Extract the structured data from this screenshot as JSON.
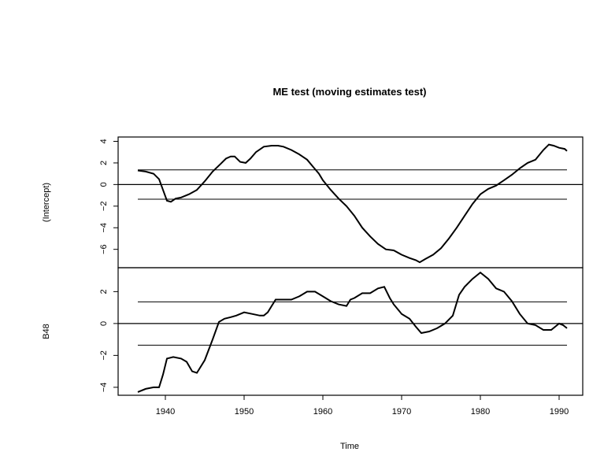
{
  "chart_data": {
    "type": "line",
    "title": "ME test (moving estimates test)",
    "xlabel": "Time",
    "xlim": [
      1934,
      1993
    ],
    "x_ticks": [
      1940,
      1950,
      1960,
      1970,
      1980,
      1990
    ],
    "panels": [
      {
        "ylabel": "(Intercept)",
        "ylim": [
          -7.7,
          4.4
        ],
        "y_ticks": [
          4,
          2,
          0,
          -2,
          -4,
          -6
        ],
        "boundaries": [
          1.36,
          -1.36
        ],
        "zero_line": 0,
        "x": [
          1936.5,
          1937.5,
          1938.5,
          1939.2,
          1939.7,
          1940.2,
          1940.7,
          1941.3,
          1942.0,
          1943.0,
          1944.0,
          1945.0,
          1946.0,
          1947.0,
          1947.7,
          1948.3,
          1948.8,
          1949.5,
          1950.2,
          1950.8,
          1951.5,
          1952.5,
          1953.5,
          1954.3,
          1955.0,
          1956.0,
          1957.0,
          1958.0,
          1958.8,
          1959.5,
          1960.0,
          1961.0,
          1962.0,
          1963.0,
          1964.0,
          1965.0,
          1966.0,
          1967.0,
          1968.0,
          1969.0,
          1970.0,
          1971.0,
          1971.8,
          1972.3,
          1973.0,
          1974.0,
          1975.0,
          1976.0,
          1977.0,
          1978.0,
          1979.0,
          1980.0,
          1981.0,
          1982.0,
          1983.0,
          1984.0,
          1985.0,
          1986.0,
          1987.0,
          1988.0,
          1988.7,
          1989.3,
          1990.0,
          1990.7,
          1991.0
        ],
        "y": [
          1.3,
          1.2,
          1.0,
          0.5,
          -0.5,
          -1.5,
          -1.6,
          -1.3,
          -1.2,
          -0.9,
          -0.5,
          0.3,
          1.2,
          1.9,
          2.4,
          2.6,
          2.6,
          2.1,
          2.0,
          2.4,
          3.0,
          3.5,
          3.6,
          3.6,
          3.5,
          3.2,
          2.8,
          2.3,
          1.6,
          1.0,
          0.4,
          -0.5,
          -1.3,
          -2.0,
          -2.9,
          -4.0,
          -4.8,
          -5.5,
          -6.0,
          -6.1,
          -6.5,
          -6.8,
          -7.0,
          -7.2,
          -6.9,
          -6.5,
          -5.9,
          -5.0,
          -4.0,
          -2.9,
          -1.8,
          -0.9,
          -0.4,
          -0.1,
          0.4,
          0.9,
          1.5,
          2.0,
          2.3,
          3.2,
          3.7,
          3.6,
          3.4,
          3.3,
          3.1
        ]
      },
      {
        "ylabel": "B48",
        "ylim": [
          -4.5,
          3.5
        ],
        "y_ticks": [
          2,
          0,
          -2,
          -4
        ],
        "boundaries": [
          1.36,
          -1.36
        ],
        "zero_line": 0,
        "x": [
          1936.5,
          1937.5,
          1938.5,
          1939.2,
          1939.7,
          1940.2,
          1941.0,
          1942.0,
          1942.7,
          1943.4,
          1944.0,
          1945.0,
          1946.0,
          1946.8,
          1947.5,
          1948.3,
          1949.0,
          1950.0,
          1951.0,
          1952.0,
          1952.5,
          1953.0,
          1954.0,
          1955.0,
          1956.0,
          1957.0,
          1958.0,
          1959.0,
          1960.0,
          1961.0,
          1962.0,
          1963.0,
          1963.5,
          1964.0,
          1965.0,
          1966.0,
          1967.0,
          1967.8,
          1968.5,
          1969.0,
          1970.0,
          1971.0,
          1971.8,
          1972.5,
          1973.5,
          1974.5,
          1975.5,
          1976.5,
          1977.3,
          1978.0,
          1979.0,
          1980.0,
          1981.0,
          1982.0,
          1983.0,
          1984.0,
          1985.0,
          1986.0,
          1987.0,
          1988.0,
          1989.0,
          1990.0,
          1990.5,
          1991.0
        ],
        "y": [
          -4.3,
          -4.1,
          -4.0,
          -4.0,
          -3.2,
          -2.2,
          -2.1,
          -2.2,
          -2.4,
          -3.0,
          -3.1,
          -2.3,
          -1.0,
          0.1,
          0.3,
          0.4,
          0.5,
          0.7,
          0.6,
          0.5,
          0.5,
          0.7,
          1.5,
          1.5,
          1.5,
          1.7,
          2.0,
          2.0,
          1.7,
          1.4,
          1.2,
          1.1,
          1.5,
          1.6,
          1.9,
          1.9,
          2.2,
          2.3,
          1.6,
          1.2,
          0.6,
          0.3,
          -0.2,
          -0.6,
          -0.5,
          -0.3,
          0.0,
          0.5,
          1.8,
          2.3,
          2.8,
          3.2,
          2.8,
          2.2,
          2.0,
          1.4,
          0.6,
          0.0,
          -0.1,
          -0.4,
          -0.4,
          0.0,
          -0.1,
          -0.3
        ]
      }
    ]
  }
}
